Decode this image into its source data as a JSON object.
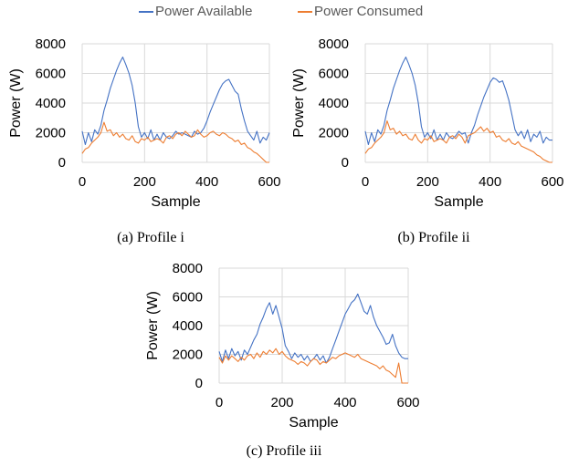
{
  "legend": {
    "items": [
      {
        "label": "Power Available",
        "color": "#4472c4"
      },
      {
        "label": "Power Consumed",
        "color": "#ed7d31"
      }
    ]
  },
  "chart_data": [
    {
      "type": "line",
      "caption": "(a) Profile i",
      "xlabel": "Sample",
      "ylabel": "Power (W)",
      "xlim": [
        0,
        600
      ],
      "ylim": [
        0,
        8000
      ],
      "xticks": [
        0,
        200,
        400,
        600
      ],
      "yticks": [
        0,
        2000,
        4000,
        6000,
        8000
      ],
      "grid": true,
      "legend": "top",
      "series": [
        {
          "name": "Power Available",
          "color": "#4472c4",
          "x": [
            0,
            10,
            20,
            30,
            40,
            50,
            60,
            70,
            80,
            90,
            100,
            110,
            120,
            130,
            140,
            150,
            160,
            170,
            180,
            190,
            200,
            210,
            220,
            230,
            240,
            250,
            260,
            270,
            280,
            290,
            300,
            310,
            320,
            330,
            340,
            350,
            360,
            370,
            380,
            390,
            400,
            410,
            420,
            430,
            440,
            450,
            460,
            470,
            480,
            490,
            500,
            510,
            520,
            530,
            540,
            550,
            560,
            570,
            580,
            590,
            600
          ],
          "y": [
            2100,
            1200,
            2000,
            1400,
            2200,
            1900,
            2500,
            3500,
            4200,
            5000,
            5600,
            6200,
            6700,
            7100,
            6600,
            6000,
            5200,
            4000,
            2400,
            1700,
            2000,
            1600,
            2200,
            1500,
            1900,
            1500,
            2000,
            1700,
            1600,
            1800,
            2100,
            1900,
            2000,
            1900,
            1800,
            1700,
            2100,
            1900,
            2000,
            2300,
            2800,
            3400,
            3900,
            4400,
            4900,
            5300,
            5500,
            5600,
            5200,
            4800,
            4600,
            3600,
            2800,
            2100,
            1800,
            1500,
            2100,
            1300,
            1700,
            1500,
            2000
          ]
        },
        {
          "name": "Power Consumed",
          "color": "#ed7d31",
          "x": [
            0,
            10,
            20,
            30,
            40,
            50,
            60,
            70,
            80,
            90,
            100,
            110,
            120,
            130,
            140,
            150,
            160,
            170,
            180,
            190,
            200,
            210,
            220,
            230,
            240,
            250,
            260,
            270,
            280,
            290,
            300,
            310,
            320,
            330,
            340,
            350,
            360,
            370,
            380,
            390,
            400,
            410,
            420,
            430,
            440,
            450,
            460,
            470,
            480,
            490,
            500,
            510,
            520,
            530,
            540,
            550,
            560,
            570,
            580,
            590,
            600
          ],
          "y": [
            600,
            900,
            1000,
            1300,
            1500,
            1700,
            2000,
            2700,
            2100,
            2200,
            1800,
            2000,
            1700,
            1900,
            1600,
            1500,
            1800,
            1400,
            1300,
            1600,
            1500,
            1700,
            1400,
            1500,
            1600,
            1500,
            1300,
            1700,
            1800,
            1600,
            1900,
            2000,
            1800,
            2100,
            1900,
            1700,
            1800,
            2200,
            1900,
            1700,
            1800,
            2000,
            2100,
            1900,
            1800,
            2000,
            1900,
            1700,
            1600,
            1400,
            1500,
            1200,
            1300,
            1000,
            900,
            700,
            600,
            400,
            200,
            0,
            0
          ]
        }
      ]
    },
    {
      "type": "line",
      "caption": "(b) Profile ii",
      "xlabel": "Sample",
      "ylabel": "Power (W)",
      "xlim": [
        0,
        600
      ],
      "ylim": [
        0,
        8000
      ],
      "xticks": [
        0,
        200,
        400,
        600
      ],
      "yticks": [
        0,
        2000,
        4000,
        6000,
        8000
      ],
      "grid": true,
      "legend": "top",
      "series": [
        {
          "name": "Power Available",
          "color": "#4472c4",
          "x": [
            0,
            10,
            20,
            30,
            40,
            50,
            60,
            70,
            80,
            90,
            100,
            110,
            120,
            130,
            140,
            150,
            160,
            170,
            180,
            190,
            200,
            210,
            220,
            230,
            240,
            250,
            260,
            270,
            280,
            290,
            300,
            310,
            320,
            330,
            340,
            350,
            360,
            370,
            380,
            390,
            400,
            410,
            420,
            430,
            440,
            450,
            460,
            470,
            480,
            490,
            500,
            510,
            520,
            530,
            540,
            550,
            560,
            570,
            580,
            590,
            600
          ],
          "y": [
            2100,
            1200,
            2000,
            1400,
            2200,
            1900,
            2500,
            3500,
            4200,
            5000,
            5600,
            6200,
            6700,
            7100,
            6600,
            6000,
            5200,
            4000,
            2400,
            1700,
            2000,
            1600,
            2200,
            1500,
            1900,
            1500,
            2000,
            1700,
            1600,
            1800,
            2100,
            1900,
            2000,
            1300,
            2000,
            2500,
            3200,
            3800,
            4400,
            4900,
            5400,
            5700,
            5600,
            5400,
            5500,
            4900,
            4200,
            3200,
            2200,
            1800,
            2100,
            1600,
            2200,
            1400,
            1900,
            1700,
            2100,
            1300,
            1700,
            1500,
            1500
          ]
        },
        {
          "name": "Power Consumed",
          "color": "#ed7d31",
          "x": [
            0,
            10,
            20,
            30,
            40,
            50,
            60,
            70,
            80,
            90,
            100,
            110,
            120,
            130,
            140,
            150,
            160,
            170,
            180,
            190,
            200,
            210,
            220,
            230,
            240,
            250,
            260,
            270,
            280,
            290,
            300,
            310,
            320,
            330,
            340,
            350,
            360,
            370,
            380,
            390,
            400,
            410,
            420,
            430,
            440,
            450,
            460,
            470,
            480,
            490,
            500,
            510,
            520,
            530,
            540,
            550,
            560,
            570,
            580,
            590,
            600
          ],
          "y": [
            600,
            900,
            1000,
            1300,
            1500,
            1700,
            2000,
            2800,
            2200,
            2300,
            1900,
            2100,
            1800,
            1900,
            1600,
            1500,
            1900,
            1500,
            1300,
            1600,
            1500,
            1800,
            1400,
            1500,
            1600,
            1500,
            1300,
            1700,
            1800,
            1600,
            1900,
            1700,
            1300,
            1800,
            1900,
            2000,
            2200,
            2400,
            2100,
            2300,
            2000,
            2100,
            1700,
            1800,
            1500,
            1400,
            1600,
            1300,
            1200,
            1400,
            1100,
            1000,
            900,
            800,
            700,
            500,
            400,
            200,
            100,
            0,
            0
          ]
        }
      ]
    },
    {
      "type": "line",
      "caption": "(c) Profile iii",
      "xlabel": "Sample",
      "ylabel": "Power (W)",
      "xlim": [
        0,
        600
      ],
      "ylim": [
        0,
        8000
      ],
      "xticks": [
        0,
        200,
        400,
        600
      ],
      "yticks": [
        0,
        2000,
        4000,
        6000,
        8000
      ],
      "grid": true,
      "legend": "top",
      "series": [
        {
          "name": "Power Available",
          "color": "#4472c4",
          "x": [
            0,
            10,
            20,
            30,
            40,
            50,
            60,
            70,
            80,
            90,
            100,
            110,
            120,
            130,
            140,
            150,
            160,
            170,
            180,
            190,
            200,
            210,
            220,
            230,
            240,
            250,
            260,
            270,
            280,
            290,
            300,
            310,
            320,
            330,
            340,
            350,
            360,
            370,
            380,
            390,
            400,
            410,
            420,
            430,
            440,
            450,
            460,
            470,
            480,
            490,
            500,
            510,
            520,
            530,
            540,
            550,
            560,
            570,
            580,
            590,
            600
          ],
          "y": [
            2200,
            1500,
            2300,
            1700,
            2400,
            1900,
            2200,
            1600,
            2300,
            2000,
            2500,
            3000,
            3400,
            4100,
            4600,
            5200,
            5600,
            4800,
            5400,
            4600,
            3800,
            2600,
            2200,
            1700,
            2100,
            1800,
            2000,
            1600,
            1900,
            1500,
            1700,
            2000,
            1600,
            1900,
            1400,
            1800,
            2400,
            3000,
            3600,
            4200,
            4800,
            5200,
            5600,
            5800,
            6200,
            5600,
            5000,
            4800,
            5400,
            4600,
            4000,
            3600,
            3200,
            2700,
            2800,
            3400,
            2600,
            2100,
            1800,
            1700,
            1700
          ]
        },
        {
          "name": "Power Consumed",
          "color": "#ed7d31",
          "x": [
            0,
            10,
            20,
            30,
            40,
            50,
            60,
            70,
            80,
            90,
            100,
            110,
            120,
            130,
            140,
            150,
            160,
            170,
            180,
            190,
            200,
            210,
            220,
            230,
            240,
            250,
            260,
            270,
            280,
            290,
            300,
            310,
            320,
            330,
            340,
            350,
            360,
            370,
            380,
            390,
            400,
            410,
            420,
            430,
            440,
            450,
            460,
            470,
            480,
            490,
            500,
            510,
            520,
            530,
            540,
            550,
            560,
            570,
            580,
            590,
            600
          ],
          "y": [
            1800,
            1400,
            1900,
            1600,
            1900,
            1700,
            1500,
            1800,
            1600,
            1900,
            2000,
            1700,
            2100,
            1800,
            2200,
            2000,
            2300,
            2100,
            2400,
            2000,
            2200,
            1900,
            1700,
            1600,
            1500,
            1300,
            1500,
            1400,
            1200,
            1500,
            1700,
            1600,
            1300,
            1500,
            1400,
            1600,
            1800,
            1700,
            1900,
            2000,
            2100,
            2000,
            1900,
            1800,
            2000,
            1700,
            1600,
            1500,
            1400,
            1300,
            1200,
            1000,
            1200,
            900,
            800,
            600,
            400,
            1400,
            0,
            0,
            0
          ]
        }
      ]
    }
  ]
}
